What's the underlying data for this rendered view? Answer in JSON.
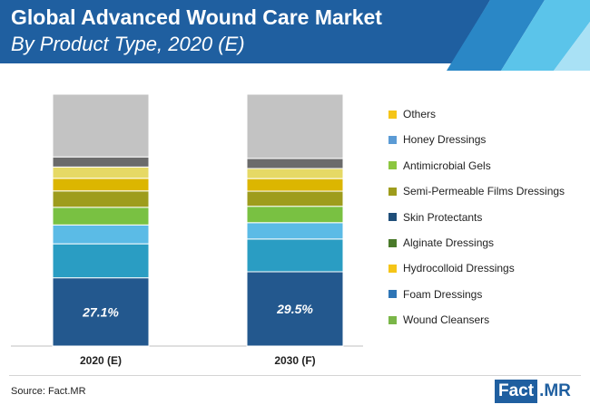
{
  "header": {
    "title": "Global Advanced Wound Care Market",
    "subtitle": "By Product Type, 2020 (E)"
  },
  "colors": {
    "header_blue": "#1f5fa0",
    "accent_light_blue": "#5bc4ea"
  },
  "chart_data": {
    "type": "bar",
    "stacked": true,
    "categories": [
      "2020 (E)",
      "2030 (F)"
    ],
    "series": [
      {
        "name": "Wound Cleansers",
        "color": "#23588e",
        "values": [
          27.1,
          29.5
        ],
        "label": [
          "27.1%",
          "29.5%"
        ]
      },
      {
        "name": "Foam Dressings",
        "color": "#2a9dc3",
        "values": [
          13.5,
          13.0
        ]
      },
      {
        "name": "Hydrocolloid Dressings",
        "color": "#5bbbe6",
        "values": [
          7.5,
          6.5
        ]
      },
      {
        "name": "Alginate Dressings",
        "color": "#79c142",
        "values": [
          7.0,
          6.5
        ]
      },
      {
        "name": "Skin Protectants",
        "color": "#9e9c1c",
        "values": [
          6.5,
          6.0
        ]
      },
      {
        "name": "Semi-Permeable Films Dressings",
        "color": "#dcb600",
        "values": [
          5.0,
          5.0
        ]
      },
      {
        "name": "Antimicrobial Gels",
        "color": "#e6d965",
        "values": [
          4.5,
          4.0
        ]
      },
      {
        "name": "Honey Dressings",
        "color": "#6b6b6b",
        "values": [
          4.0,
          4.0
        ]
      },
      {
        "name": "Others",
        "color": "#c3c3c3",
        "values": [
          24.9,
          25.5
        ]
      }
    ],
    "ylim": [
      0,
      100
    ],
    "grid": false,
    "legend_position": "right"
  },
  "legend": [
    {
      "label": "Others",
      "color": "#f5c518"
    },
    {
      "label": "Honey Dressings",
      "color": "#5b9bd5"
    },
    {
      "label": "Antimicrobial Gels",
      "color": "#8cc63f"
    },
    {
      "label": "Semi-Permeable Films Dressings",
      "color": "#9e9c1c"
    },
    {
      "label": "Skin Protectants",
      "color": "#1f4e79"
    },
    {
      "label": "Alginate Dressings",
      "color": "#4a7a2a"
    },
    {
      "label": "Hydrocolloid Dressings",
      "color": "#f5c518"
    },
    {
      "label": "Foam Dressings",
      "color": "#2e75b6"
    },
    {
      "label": "Wound Cleansers",
      "color": "#7ab648"
    }
  ],
  "footer": {
    "source": "Source: Fact.MR",
    "logo_part1": "Fact",
    "logo_part2": ".MR"
  }
}
